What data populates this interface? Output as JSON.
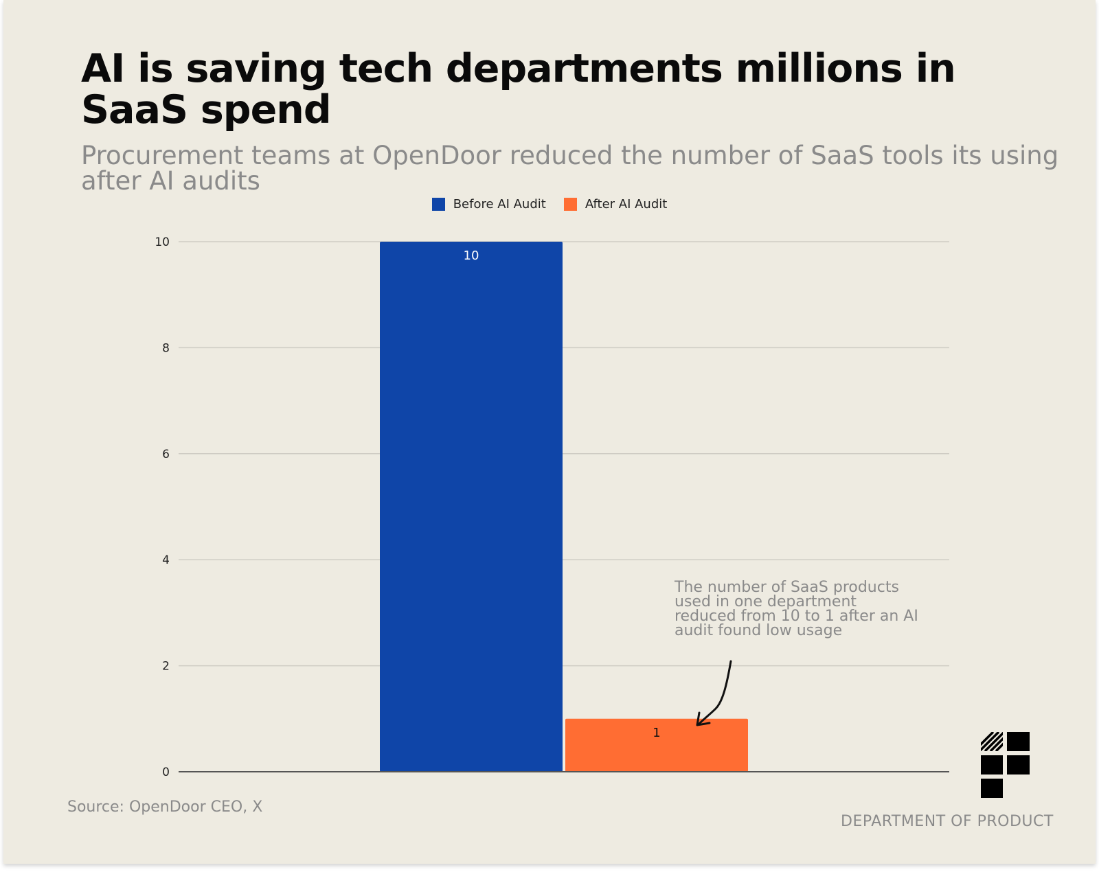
{
  "header": {
    "title": "AI is saving tech departments millions in SaaS spend",
    "subtitle": "Procurement teams at OpenDoor reduced the number of SaaS tools its using after AI audits"
  },
  "legend": [
    {
      "label": "Before AI Audit",
      "color": "#0f45a8"
    },
    {
      "label": "After AI Audit",
      "color": "#ff6d33"
    }
  ],
  "annotation": "The number of SaaS products used in one department reduced from 10 to 1 after an AI audit found low usage",
  "footer": {
    "source": "Source: OpenDoor CEO, X",
    "brand": "DEPARTMENT OF PRODUCT"
  },
  "chart_data": {
    "type": "bar",
    "title": "AI is saving tech departments millions in SaaS spend",
    "xlabel": "",
    "ylabel": "",
    "ylim": [
      0,
      10
    ],
    "yticks": [
      0,
      2,
      4,
      6,
      8,
      10
    ],
    "grid": true,
    "legend_position": "top-center",
    "categories": [
      ""
    ],
    "series": [
      {
        "name": "Before AI Audit",
        "values": [
          10
        ],
        "color": "#0f45a8"
      },
      {
        "name": "After AI Audit",
        "values": [
          1
        ],
        "color": "#ff6d33"
      }
    ]
  }
}
